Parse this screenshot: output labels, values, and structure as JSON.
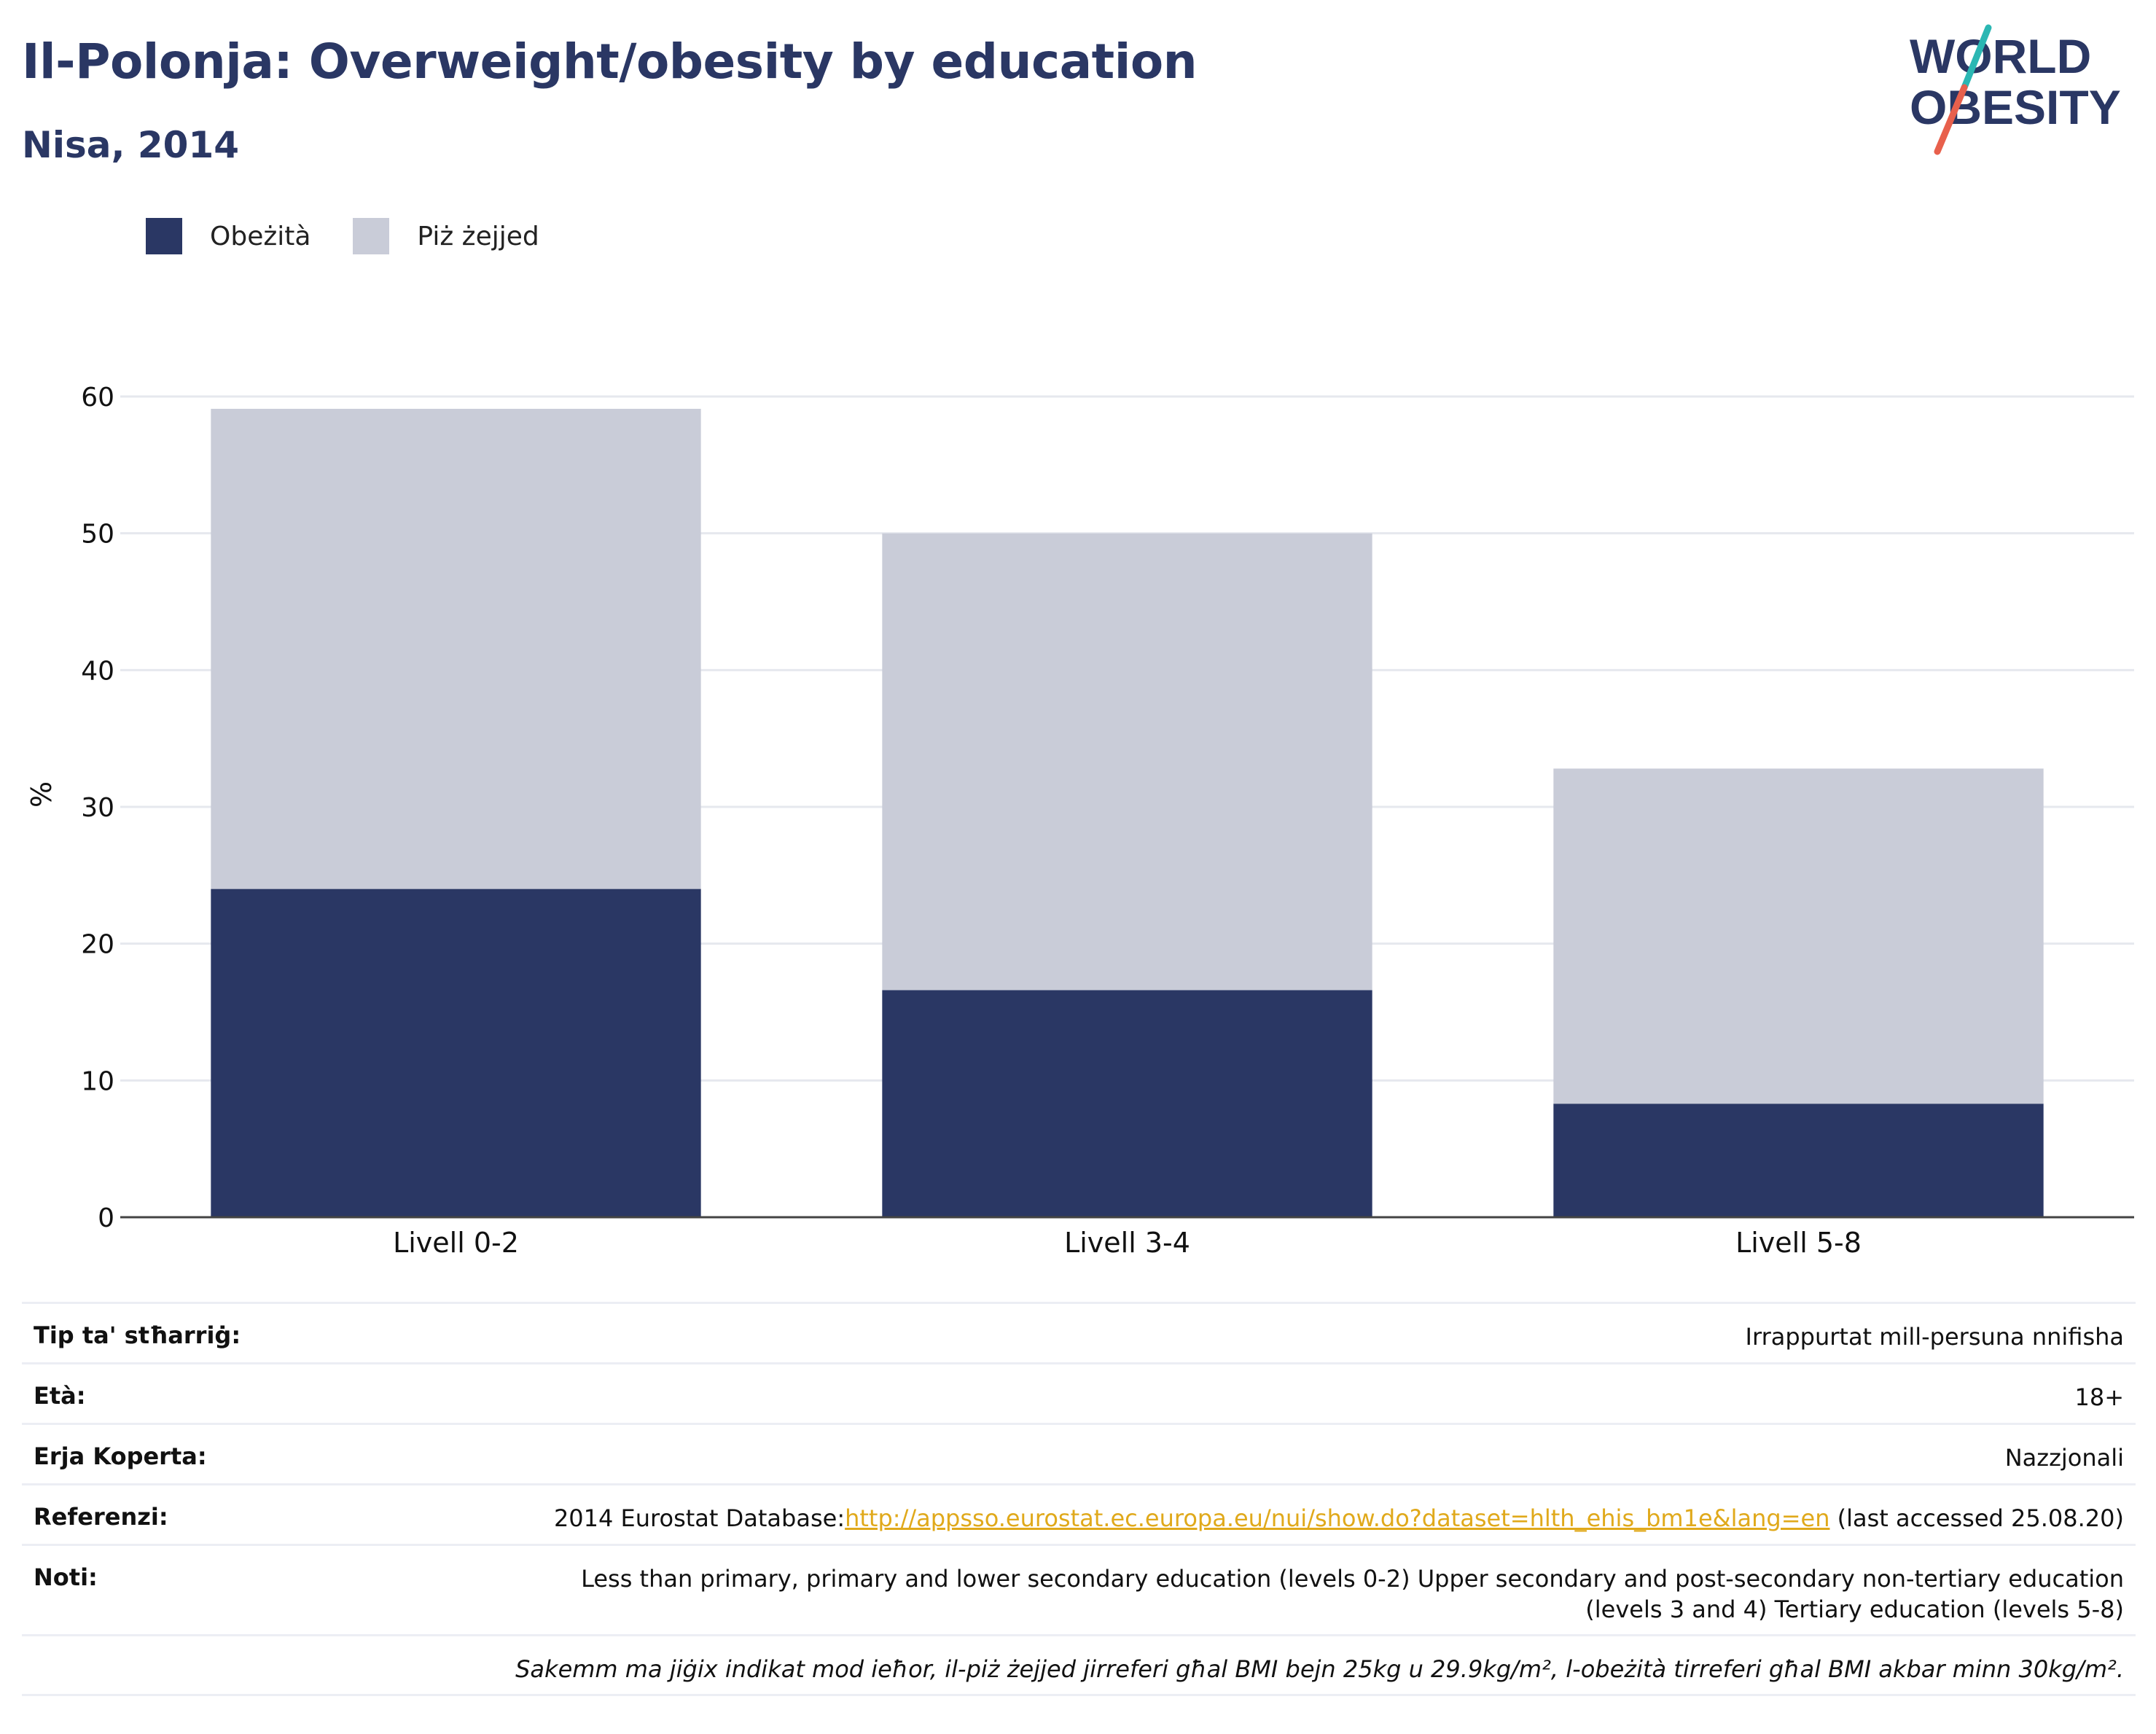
{
  "header": {
    "title": "Il-Polonja: Overweight/obesity by education",
    "subtitle": "Nisa, 2014"
  },
  "logo": {
    "line1": "WORLD",
    "line2": "OBESITY",
    "colors": {
      "text": "#2a3764",
      "slash_top": "#2bb7b3",
      "slash_bottom": "#e8604c"
    }
  },
  "legend": {
    "items": [
      {
        "label": "Obeżità",
        "color": "#2a3764"
      },
      {
        "label": "Piż żejjed",
        "color": "#c9ccd8"
      }
    ]
  },
  "chart_data": {
    "type": "bar",
    "stacked": true,
    "categories": [
      "Livell 0-2",
      "Livell 3-4",
      "Livell 5-8"
    ],
    "series": [
      {
        "name": "Obeżità",
        "color": "#2a3764",
        "values": [
          24.0,
          16.6,
          8.3
        ]
      },
      {
        "name": "Piż żejjed",
        "color": "#c9ccd8",
        "values": [
          35.1,
          33.4,
          24.5
        ]
      }
    ],
    "ylabel": "%",
    "ylim": [
      0,
      60
    ],
    "yticks": [
      0,
      10,
      20,
      30,
      40,
      50,
      60
    ],
    "grid": true,
    "legend_position": "top-left"
  },
  "info": {
    "rows": [
      {
        "label": "Tip ta' stħarriġ:",
        "value": "Irrappurtat mill-persuna nnifisha"
      },
      {
        "label": "Età:",
        "value": "18+"
      },
      {
        "label": "Erja Koperta:",
        "value": "Nazzjonali"
      },
      {
        "label": "Referenzi:",
        "value_prefix": "2014 Eurostat Database:",
        "link": "http://appsso.eurostat.ec.europa.eu/nui/show.do?dataset=hlth_ehis_bm1e&lang=en",
        "value_suffix": " (last accessed 25.08.20)"
      },
      {
        "label": "Noti:",
        "value_line1": "Less than primary, primary and lower secondary education (levels 0-2) Upper secondary and post-secondary non-tertiary education",
        "value_line2": "(levels 3 and 4) Tertiary education (levels 5-8)"
      }
    ],
    "footnote": "Sakemm ma jiġix indikat mod ieħor, il-piż żejjed jirreferi għal BMI bejn 25kg u 29.9kg/m², l-obeżità tirreferi għal BMI akbar minn 30kg/m²."
  }
}
